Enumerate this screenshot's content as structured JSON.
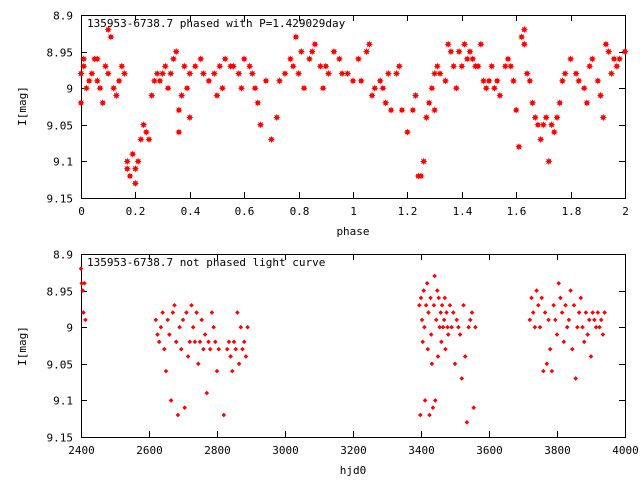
{
  "chart_data": [
    {
      "type": "scatter",
      "title": "135953-6738.7 phased with P=1.429029day",
      "xlabel": "phase",
      "ylabel": "I[mag]",
      "xlim": [
        0,
        2
      ],
      "ylim": [
        9.15,
        8.9
      ],
      "y_inverted": true,
      "xticks": [
        "0",
        "0.2",
        "0.4",
        "0.6",
        "0.8",
        "1",
        "1.2",
        "1.4",
        "1.6",
        "1.8",
        "2"
      ],
      "yticks": [
        "8.9",
        "8.95",
        "9",
        "9.05",
        "9.1",
        "9.15"
      ],
      "grid": false,
      "marker": "star",
      "color": "#ff0000",
      "points": [
        [
          0.0,
          9.02
        ],
        [
          0.0,
          8.98
        ],
        [
          0.01,
          8.97
        ],
        [
          0.01,
          8.96
        ],
        [
          0.02,
          9.0
        ],
        [
          0.03,
          8.99
        ],
        [
          0.04,
          8.98
        ],
        [
          0.05,
          8.96
        ],
        [
          0.06,
          8.96
        ],
        [
          0.06,
          8.99
        ],
        [
          0.07,
          9.0
        ],
        [
          0.08,
          9.02
        ],
        [
          0.09,
          8.97
        ],
        [
          0.1,
          8.98
        ],
        [
          0.1,
          8.92
        ],
        [
          0.11,
          8.93
        ],
        [
          0.12,
          9.0
        ],
        [
          0.13,
          9.01
        ],
        [
          0.14,
          8.99
        ],
        [
          0.15,
          8.97
        ],
        [
          0.16,
          8.98
        ],
        [
          0.17,
          9.1
        ],
        [
          0.17,
          9.11
        ],
        [
          0.18,
          9.12
        ],
        [
          0.19,
          9.09
        ],
        [
          0.2,
          9.11
        ],
        [
          0.2,
          9.13
        ],
        [
          0.21,
          9.1
        ],
        [
          0.22,
          9.07
        ],
        [
          0.23,
          9.05
        ],
        [
          0.24,
          9.06
        ],
        [
          0.25,
          9.07
        ],
        [
          0.26,
          9.01
        ],
        [
          0.27,
          8.99
        ],
        [
          0.28,
          8.98
        ],
        [
          0.29,
          8.99
        ],
        [
          0.3,
          8.98
        ],
        [
          0.31,
          8.97
        ],
        [
          0.32,
          9.0
        ],
        [
          0.33,
          8.98
        ],
        [
          0.34,
          8.96
        ],
        [
          0.35,
          8.95
        ],
        [
          0.36,
          9.03
        ],
        [
          0.36,
          9.06
        ],
        [
          0.37,
          9.01
        ],
        [
          0.38,
          8.97
        ],
        [
          0.39,
          9.0
        ],
        [
          0.4,
          9.04
        ],
        [
          0.4,
          8.98
        ],
        [
          0.42,
          8.97
        ],
        [
          0.44,
          8.96
        ],
        [
          0.45,
          8.98
        ],
        [
          0.47,
          8.99
        ],
        [
          0.49,
          8.98
        ],
        [
          0.5,
          9.01
        ],
        [
          0.51,
          8.97
        ],
        [
          0.52,
          9.0
        ],
        [
          0.53,
          8.96
        ],
        [
          0.55,
          8.97
        ],
        [
          0.56,
          8.97
        ],
        [
          0.58,
          8.98
        ],
        [
          0.59,
          9.0
        ],
        [
          0.6,
          8.96
        ],
        [
          0.62,
          8.97
        ],
        [
          0.63,
          8.98
        ],
        [
          0.64,
          9.0
        ],
        [
          0.65,
          9.02
        ],
        [
          0.66,
          9.05
        ],
        [
          0.68,
          8.99
        ],
        [
          0.7,
          9.07
        ],
        [
          0.72,
          9.04
        ],
        [
          0.73,
          8.99
        ],
        [
          0.75,
          8.98
        ],
        [
          0.77,
          8.96
        ],
        [
          0.78,
          8.97
        ],
        [
          0.79,
          8.93
        ],
        [
          0.8,
          8.98
        ],
        [
          0.81,
          8.95
        ],
        [
          0.82,
          9.0
        ],
        [
          0.84,
          8.96
        ],
        [
          0.85,
          8.95
        ],
        [
          0.86,
          8.94
        ],
        [
          0.88,
          8.97
        ],
        [
          0.89,
          9.0
        ],
        [
          0.9,
          8.97
        ],
        [
          0.91,
          8.98
        ],
        [
          0.93,
          8.95
        ],
        [
          0.95,
          8.96
        ],
        [
          0.96,
          8.98
        ],
        [
          0.98,
          8.98
        ],
        [
          1.0,
          8.99
        ],
        [
          1.02,
          8.96
        ],
        [
          1.03,
          8.99
        ],
        [
          1.05,
          8.95
        ],
        [
          1.06,
          8.94
        ],
        [
          1.07,
          9.01
        ],
        [
          1.08,
          9.0
        ],
        [
          1.1,
          8.99
        ],
        [
          1.11,
          9.0
        ],
        [
          1.12,
          9.02
        ],
        [
          1.13,
          8.98
        ],
        [
          1.14,
          9.03
        ],
        [
          1.16,
          8.98
        ],
        [
          1.17,
          8.97
        ],
        [
          1.18,
          9.03
        ],
        [
          1.2,
          9.06
        ],
        [
          1.22,
          9.03
        ],
        [
          1.23,
          9.01
        ],
        [
          1.24,
          9.12
        ],
        [
          1.25,
          9.12
        ],
        [
          1.26,
          9.1
        ],
        [
          1.27,
          9.04
        ],
        [
          1.28,
          9.02
        ],
        [
          1.29,
          9.0
        ],
        [
          1.3,
          9.03
        ],
        [
          1.3,
          8.98
        ],
        [
          1.31,
          8.97
        ],
        [
          1.32,
          8.98
        ],
        [
          1.34,
          8.99
        ],
        [
          1.35,
          8.94
        ],
        [
          1.36,
          8.95
        ],
        [
          1.37,
          8.97
        ],
        [
          1.38,
          9.0
        ],
        [
          1.39,
          8.95
        ],
        [
          1.4,
          8.97
        ],
        [
          1.41,
          8.94
        ],
        [
          1.42,
          8.96
        ],
        [
          1.43,
          8.95
        ],
        [
          1.44,
          8.96
        ],
        [
          1.45,
          8.97
        ],
        [
          1.46,
          8.97
        ],
        [
          1.47,
          8.94
        ],
        [
          1.48,
          8.99
        ],
        [
          1.49,
          9.0
        ],
        [
          1.5,
          8.99
        ],
        [
          1.51,
          8.97
        ],
        [
          1.52,
          9.0
        ],
        [
          1.53,
          8.99
        ],
        [
          1.54,
          9.01
        ],
        [
          1.56,
          8.97
        ],
        [
          1.57,
          8.96
        ],
        [
          1.58,
          8.97
        ],
        [
          1.59,
          8.99
        ],
        [
          1.6,
          9.03
        ],
        [
          1.61,
          9.08
        ],
        [
          1.62,
          8.93
        ],
        [
          1.63,
          8.92
        ],
        [
          1.63,
          8.94
        ],
        [
          1.64,
          8.98
        ],
        [
          1.65,
          8.99
        ],
        [
          1.66,
          9.02
        ],
        [
          1.67,
          9.04
        ],
        [
          1.68,
          9.05
        ],
        [
          1.69,
          9.07
        ],
        [
          1.7,
          9.05
        ],
        [
          1.71,
          9.04
        ],
        [
          1.72,
          9.1
        ],
        [
          1.73,
          9.05
        ],
        [
          1.74,
          9.06
        ],
        [
          1.75,
          9.04
        ],
        [
          1.76,
          9.02
        ],
        [
          1.77,
          8.99
        ],
        [
          1.78,
          8.98
        ],
        [
          1.8,
          8.96
        ],
        [
          1.82,
          8.98
        ],
        [
          1.83,
          8.99
        ],
        [
          1.85,
          9.0
        ],
        [
          1.86,
          9.02
        ],
        [
          1.87,
          8.97
        ],
        [
          1.88,
          8.96
        ],
        [
          1.9,
          8.99
        ],
        [
          1.91,
          9.01
        ],
        [
          1.92,
          9.04
        ],
        [
          1.93,
          8.94
        ],
        [
          1.94,
          8.95
        ],
        [
          1.95,
          8.98
        ],
        [
          1.96,
          8.96
        ],
        [
          1.97,
          8.97
        ],
        [
          1.98,
          8.96
        ],
        [
          2.0,
          8.95
        ]
      ]
    },
    {
      "type": "scatter",
      "title": "135953-6738.7 not phased light curve",
      "xlabel": "hjd0",
      "ylabel": "I[mag]",
      "xlim": [
        2400,
        4000
      ],
      "ylim": [
        9.15,
        8.9
      ],
      "y_inverted": true,
      "xticks": [
        "2400",
        "2600",
        "2800",
        "3000",
        "3200",
        "3400",
        "3600",
        "3800",
        "4000"
      ],
      "yticks": [
        "8.9",
        "8.95",
        "9",
        "9.05",
        "9.1",
        "9.15"
      ],
      "grid": false,
      "marker": "diamond",
      "color": "#ff0000",
      "points": [
        [
          2400,
          8.92
        ],
        [
          2402,
          8.94
        ],
        [
          2405,
          8.95
        ],
        [
          2407,
          8.98
        ],
        [
          2410,
          8.94
        ],
        [
          2413,
          8.99
        ],
        [
          2620,
          8.99
        ],
        [
          2625,
          9.01
        ],
        [
          2630,
          9.02
        ],
        [
          2635,
          9.0
        ],
        [
          2640,
          8.98
        ],
        [
          2645,
          9.03
        ],
        [
          2650,
          9.06
        ],
        [
          2655,
          8.99
        ],
        [
          2660,
          9.01
        ],
        [
          2665,
          9.1
        ],
        [
          2670,
          8.98
        ],
        [
          2675,
          8.97
        ],
        [
          2680,
          9.02
        ],
        [
          2685,
          9.12
        ],
        [
          2690,
          9.0
        ],
        [
          2695,
          9.03
        ],
        [
          2700,
          8.99
        ],
        [
          2705,
          9.11
        ],
        [
          2710,
          8.98
        ],
        [
          2715,
          9.04
        ],
        [
          2720,
          9.02
        ],
        [
          2725,
          8.97
        ],
        [
          2730,
          9.0
        ],
        [
          2735,
          9.02
        ],
        [
          2740,
          8.98
        ],
        [
          2745,
          9.05
        ],
        [
          2750,
          9.02
        ],
        [
          2755,
          8.99
        ],
        [
          2760,
          9.03
        ],
        [
          2765,
          9.01
        ],
        [
          2770,
          9.09
        ],
        [
          2775,
          9.02
        ],
        [
          2780,
          9.03
        ],
        [
          2785,
          8.98
        ],
        [
          2790,
          9.0
        ],
        [
          2795,
          9.02
        ],
        [
          2800,
          9.06
        ],
        [
          2805,
          9.03
        ],
        [
          2820,
          9.12
        ],
        [
          2830,
          9.03
        ],
        [
          2835,
          9.02
        ],
        [
          2840,
          9.04
        ],
        [
          2845,
          9.06
        ],
        [
          2850,
          9.02
        ],
        [
          2855,
          9.03
        ],
        [
          2860,
          8.98
        ],
        [
          2865,
          9.05
        ],
        [
          2870,
          9.0
        ],
        [
          2875,
          9.03
        ],
        [
          2880,
          9.02
        ],
        [
          2885,
          9.04
        ],
        [
          2890,
          9.0
        ],
        [
          3395,
          8.97
        ],
        [
          3398,
          9.12
        ],
        [
          3400,
          8.96
        ],
        [
          3403,
          8.99
        ],
        [
          3405,
          9.02
        ],
        [
          3408,
          8.95
        ],
        [
          3410,
          9.0
        ],
        [
          3412,
          9.1
        ],
        [
          3415,
          8.97
        ],
        [
          3418,
          8.94
        ],
        [
          3420,
          9.03
        ],
        [
          3422,
          8.98
        ],
        [
          3425,
          9.12
        ],
        [
          3428,
          8.96
        ],
        [
          3430,
          9.01
        ],
        [
          3432,
          9.05
        ],
        [
          3435,
          9.11
        ],
        [
          3438,
          8.97
        ],
        [
          3440,
          8.93
        ],
        [
          3442,
          9.1
        ],
        [
          3445,
          8.99
        ],
        [
          3448,
          8.95
        ],
        [
          3450,
          9.04
        ],
        [
          3452,
          8.96
        ],
        [
          3455,
          9.0
        ],
        [
          3458,
          8.98
        ],
        [
          3460,
          9.02
        ],
        [
          3462,
          8.97
        ],
        [
          3465,
          9.0
        ],
        [
          3468,
          8.99
        ],
        [
          3470,
          8.96
        ],
        [
          3472,
          9.03
        ],
        [
          3475,
          8.98
        ],
        [
          3478,
          9.0
        ],
        [
          3480,
          9.01
        ],
        [
          3485,
          8.97
        ],
        [
          3490,
          9.0
        ],
        [
          3495,
          8.98
        ],
        [
          3500,
          9.05
        ],
        [
          3505,
          8.99
        ],
        [
          3510,
          9.0
        ],
        [
          3515,
          9.01
        ],
        [
          3520,
          9.07
        ],
        [
          3525,
          8.97
        ],
        [
          3530,
          9.04
        ],
        [
          3535,
          9.13
        ],
        [
          3540,
          9.0
        ],
        [
          3545,
          8.99
        ],
        [
          3550,
          8.98
        ],
        [
          3555,
          9.11
        ],
        [
          3560,
          9.0
        ],
        [
          3720,
          8.99
        ],
        [
          3725,
          8.96
        ],
        [
          3730,
          8.98
        ],
        [
          3735,
          9.0
        ],
        [
          3740,
          8.95
        ],
        [
          3745,
          8.97
        ],
        [
          3750,
          9.0
        ],
        [
          3755,
          8.96
        ],
        [
          3760,
          9.06
        ],
        [
          3765,
          8.98
        ],
        [
          3770,
          9.05
        ],
        [
          3775,
          8.99
        ],
        [
          3780,
          9.03
        ],
        [
          3785,
          9.06
        ],
        [
          3790,
          8.97
        ],
        [
          3795,
          8.99
        ],
        [
          3800,
          9.01
        ],
        [
          3805,
          8.94
        ],
        [
          3810,
          8.96
        ],
        [
          3815,
          8.98
        ],
        [
          3820,
          9.02
        ],
        [
          3825,
          8.97
        ],
        [
          3830,
          9.0
        ],
        [
          3835,
          8.99
        ],
        [
          3840,
          8.95
        ],
        [
          3845,
          9.03
        ],
        [
          3850,
          8.97
        ],
        [
          3855,
          9.07
        ],
        [
          3860,
          9.0
        ],
        [
          3865,
          8.98
        ],
        [
          3870,
          8.96
        ],
        [
          3875,
          9.0
        ],
        [
          3880,
          9.02
        ],
        [
          3885,
          8.98
        ],
        [
          3890,
          9.01
        ],
        [
          3895,
          8.99
        ],
        [
          3900,
          9.04
        ],
        [
          3905,
          8.98
        ],
        [
          3910,
          8.99
        ],
        [
          3915,
          9.0
        ],
        [
          3920,
          8.98
        ],
        [
          3925,
          9.0
        ],
        [
          3930,
          8.99
        ],
        [
          3935,
          9.01
        ],
        [
          3940,
          8.98
        ]
      ]
    }
  ]
}
